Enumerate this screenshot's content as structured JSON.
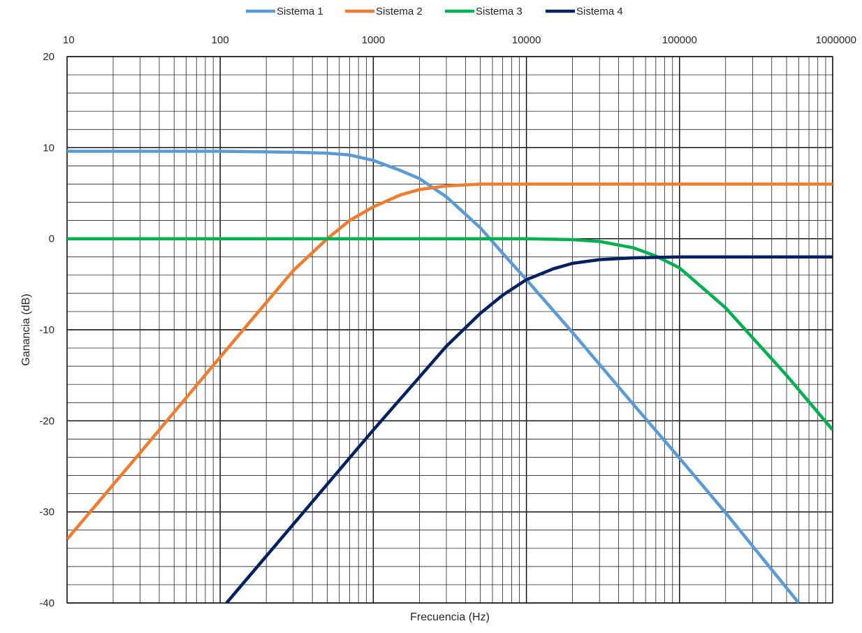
{
  "chart_data": {
    "type": "line",
    "title": "",
    "xlabel": "Frecuencia (Hz)",
    "ylabel": "Ganancia (dB)",
    "xscale": "log",
    "xlim": [
      10,
      1000000
    ],
    "ylim": [
      -40,
      20
    ],
    "x_ticks": [
      "10",
      "100",
      "1000",
      "10000",
      "100000",
      "1000000"
    ],
    "y_ticks": [
      "20",
      "10",
      "0",
      "-10",
      "-20",
      "-30",
      "-40"
    ],
    "x_tick_position": "top",
    "grid": true,
    "minor_grid": true,
    "legend_position": "top",
    "series": [
      {
        "name": "Sistema 1",
        "color": "#5b9bd5",
        "x": [
          10,
          100,
          300,
          500,
          700,
          1000,
          1500,
          2000,
          3000,
          5000,
          7000,
          10000,
          20000,
          50000,
          100000,
          200000,
          600000
        ],
        "y": [
          9.6,
          9.6,
          9.5,
          9.4,
          9.2,
          8.6,
          7.5,
          6.6,
          4.6,
          1.2,
          -1.6,
          -4.5,
          -10.3,
          -18.2,
          -24.1,
          -30.1,
          -40
        ]
      },
      {
        "name": "Sistema 2",
        "color": "#ed7d31",
        "x": [
          10,
          30,
          100,
          300,
          500,
          700,
          1000,
          1500,
          2000,
          3000,
          5000,
          10000,
          100000,
          1000000
        ],
        "y": [
          -33,
          -23.5,
          -13,
          -3.5,
          0,
          2,
          3.5,
          4.8,
          5.4,
          5.8,
          6.0,
          6.0,
          6.0,
          6.0
        ]
      },
      {
        "name": "Sistema 3",
        "color": "#00b050",
        "x": [
          10,
          1000,
          10000,
          20000,
          30000,
          50000,
          70000,
          100000,
          200000,
          500000,
          1000000
        ],
        "y": [
          0,
          0,
          0,
          -0.1,
          -0.3,
          -1.0,
          -1.9,
          -3.2,
          -7.6,
          -15,
          -21
        ]
      },
      {
        "name": "Sistema 4",
        "color": "#002060",
        "x": [
          110,
          1000,
          2000,
          3000,
          5000,
          7000,
          10000,
          15000,
          20000,
          30000,
          50000,
          100000,
          1000000
        ],
        "y": [
          -40,
          -21,
          -15.2,
          -11.8,
          -8.2,
          -6.2,
          -4.5,
          -3.3,
          -2.7,
          -2.3,
          -2.1,
          -2.0,
          -2.0
        ]
      }
    ]
  }
}
